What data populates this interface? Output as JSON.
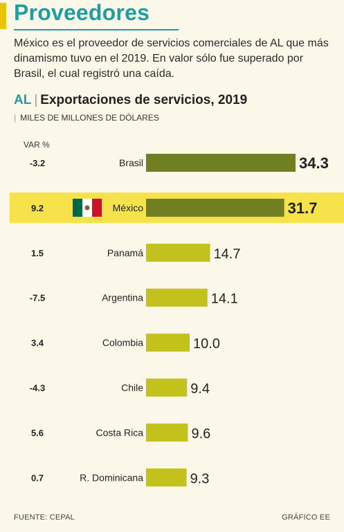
{
  "header": {
    "title": "Proveedores",
    "intro": "México es el proveedor de servicios comerciales de AL que más dinamismo tuvo en el 2019. En valor sólo fue superado por Brasil, el cual registró una caída."
  },
  "colors": {
    "title": "#1f9ea0",
    "accent": "#e8c400",
    "highlight_row": "#f6e24a",
    "bar_dark": "#6f7f22",
    "bar_light": "#c3c11b",
    "background": "#fbf8ea"
  },
  "chart_data": {
    "type": "bar",
    "orientation": "horizontal",
    "region": "AL",
    "title": "Exportaciones de servicios, 2019",
    "units": "MILES DE MILLONES DE DÓLARES",
    "var_header": "VAR %",
    "highlight": "México",
    "flag_icon": "mexico-flag-icon",
    "categories": [
      "Brasil",
      "México",
      "Panamá",
      "Argentina",
      "Colombia",
      "Chile",
      "Costa Rica",
      "R. Dominicana"
    ],
    "values": [
      34.3,
      31.7,
      14.7,
      14.1,
      10.0,
      9.4,
      9.6,
      9.3
    ],
    "value_labels": [
      "34.3",
      "31.7",
      "14.7",
      "14.1",
      "10.0",
      "9.4",
      "9.6",
      "9.3"
    ],
    "var_pct": [
      "-3.2",
      "9.2",
      "1.5",
      "-7.5",
      "3.4",
      "-4.3",
      "5.6",
      "0.7"
    ],
    "xlim": [
      0,
      34.3
    ]
  },
  "footer": {
    "source": "FUENTE: CEPAL",
    "credit": "GRÁFICO EE"
  }
}
